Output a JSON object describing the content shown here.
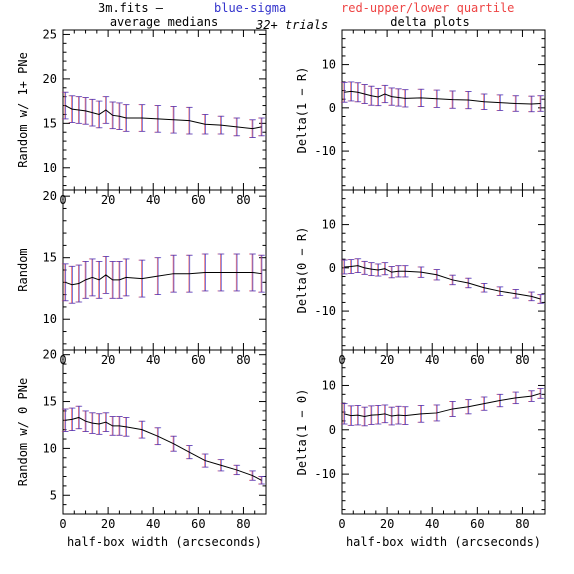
{
  "header": {
    "file_label": "3m.fits  —",
    "blue_label": "blue-sigma",
    "red_label": "red-upper/lower quartile",
    "trials_label": "32+ trials",
    "left_column_title": "average medians",
    "right_column_title": "delta plots"
  },
  "colors": {
    "line": "#000000",
    "sigma_bars": "#3333cc",
    "quartile_bars": "#ee4444",
    "frame": "#000000"
  },
  "chart_data": [
    {
      "type": "line",
      "panel": "left-top",
      "title": "",
      "xlabel": "",
      "ylabel": "Random w/ 1+ PNe",
      "xlim": [
        0,
        90
      ],
      "ylim": [
        7.5,
        25.5
      ],
      "xticks": [
        0,
        20,
        40,
        60,
        80
      ],
      "yticks": [
        10,
        15,
        20,
        25
      ],
      "show_xtick_labels": true,
      "x": [
        1,
        4,
        7,
        10,
        13,
        16,
        19,
        22,
        25,
        28,
        35,
        42,
        49,
        56,
        63,
        70,
        77,
        84,
        88
      ],
      "y": [
        17.0,
        16.6,
        16.5,
        16.4,
        16.2,
        16.0,
        16.5,
        15.9,
        15.8,
        15.6,
        15.6,
        15.5,
        15.4,
        15.3,
        14.9,
        14.8,
        14.6,
        14.4,
        14.6
      ],
      "yerr": [
        1.5,
        1.5,
        1.5,
        1.5,
        1.5,
        1.5,
        1.5,
        1.5,
        1.5,
        1.5,
        1.5,
        1.5,
        1.5,
        1.5,
        1.1,
        1.0,
        1.0,
        1.0,
        1.0
      ]
    },
    {
      "type": "line",
      "panel": "right-top",
      "title": "",
      "xlabel": "",
      "ylabel": "Delta(1 − R)",
      "xlim": [
        0,
        90
      ],
      "ylim": [
        -19,
        18
      ],
      "xticks": [
        0,
        20,
        40,
        60,
        80
      ],
      "yticks": [
        -10,
        0,
        10
      ],
      "show_xtick_labels": false,
      "x": [
        1,
        4,
        7,
        10,
        13,
        16,
        19,
        22,
        25,
        28,
        35,
        42,
        49,
        56,
        63,
        70,
        77,
        84,
        88
      ],
      "y": [
        3.6,
        3.8,
        3.6,
        3.2,
        2.8,
        2.5,
        3.2,
        2.6,
        2.4,
        2.2,
        2.3,
        2.1,
        1.9,
        1.8,
        1.4,
        1.2,
        1.0,
        0.9,
        1.0
      ],
      "yerr": [
        2.3,
        2.2,
        2.2,
        2.2,
        2.2,
        2.0,
        2.0,
        2.0,
        2.0,
        2.0,
        2.0,
        2.0,
        2.0,
        2.0,
        1.8,
        1.8,
        1.8,
        1.8,
        1.8
      ]
    },
    {
      "type": "line",
      "panel": "left-middle",
      "title": "",
      "xlabel": "",
      "ylabel": "Random",
      "xlim": [
        0,
        90
      ],
      "ylim": [
        7.5,
        20.5
      ],
      "xticks": [
        0,
        20,
        40,
        60,
        80
      ],
      "yticks": [
        10,
        15,
        20
      ],
      "show_xtick_labels": true,
      "x": [
        1,
        4,
        7,
        10,
        13,
        16,
        19,
        22,
        25,
        28,
        35,
        42,
        49,
        56,
        63,
        70,
        77,
        84,
        88
      ],
      "y": [
        13.0,
        12.8,
        12.9,
        13.2,
        13.4,
        13.2,
        13.6,
        13.2,
        13.2,
        13.4,
        13.3,
        13.5,
        13.7,
        13.7,
        13.8,
        13.8,
        13.8,
        13.8,
        13.7
      ],
      "yerr": [
        1.5,
        1.5,
        1.5,
        1.5,
        1.5,
        1.5,
        1.5,
        1.5,
        1.5,
        1.5,
        1.5,
        1.5,
        1.5,
        1.5,
        1.5,
        1.5,
        1.5,
        1.5,
        1.5
      ]
    },
    {
      "type": "line",
      "panel": "right-middle",
      "title": "",
      "xlabel": "",
      "ylabel": "Delta(0 − R)",
      "xlim": [
        0,
        90
      ],
      "ylim": [
        -19,
        18
      ],
      "xticks": [
        0,
        20,
        40,
        60,
        80
      ],
      "yticks": [
        -10,
        0,
        10
      ],
      "show_xtick_labels": true,
      "x": [
        1,
        4,
        7,
        10,
        13,
        16,
        19,
        22,
        25,
        28,
        35,
        42,
        49,
        56,
        63,
        70,
        77,
        84,
        88
      ],
      "y": [
        0.2,
        0.3,
        0.5,
        0.0,
        -0.3,
        -0.5,
        -0.2,
        -1.0,
        -0.8,
        -0.8,
        -1.0,
        -1.6,
        -2.8,
        -3.5,
        -4.6,
        -5.4,
        -6.0,
        -6.6,
        -7.2
      ],
      "yerr": [
        1.6,
        1.6,
        1.6,
        1.5,
        1.5,
        1.4,
        1.4,
        1.3,
        1.3,
        1.3,
        1.2,
        1.2,
        1.1,
        1.1,
        1.0,
        1.0,
        1.0,
        1.0,
        1.0
      ]
    },
    {
      "type": "line",
      "panel": "left-bottom",
      "title": "",
      "xlabel": "half-box width (arcseconds)",
      "ylabel": "Random w/ 0 PNe",
      "xlim": [
        0,
        90
      ],
      "ylim": [
        3,
        20.5
      ],
      "xticks": [
        0,
        20,
        40,
        60,
        80
      ],
      "yticks": [
        5,
        10,
        15,
        20
      ],
      "show_xtick_labels": true,
      "x": [
        1,
        4,
        7,
        10,
        13,
        16,
        19,
        22,
        25,
        28,
        35,
        42,
        49,
        56,
        63,
        70,
        77,
        84,
        88
      ],
      "y": [
        13.0,
        13.1,
        13.3,
        12.9,
        12.7,
        12.6,
        12.8,
        12.4,
        12.4,
        12.3,
        12.0,
        11.3,
        10.5,
        9.6,
        8.7,
        8.2,
        7.7,
        7.1,
        6.6
      ],
      "yerr": [
        1.2,
        1.2,
        1.2,
        1.1,
        1.1,
        1.1,
        1.0,
        1.0,
        1.0,
        1.0,
        0.9,
        0.9,
        0.8,
        0.7,
        0.7,
        0.6,
        0.5,
        0.5,
        0.4
      ]
    },
    {
      "type": "line",
      "panel": "right-bottom",
      "title": "",
      "xlabel": "half-box width (arcseconds)",
      "ylabel": "Delta(1 − 0)",
      "xlim": [
        0,
        90
      ],
      "ylim": [
        -19,
        18
      ],
      "xticks": [
        0,
        20,
        40,
        60,
        80
      ],
      "yticks": [
        -10,
        0,
        10
      ],
      "show_xtick_labels": true,
      "x": [
        1,
        4,
        7,
        10,
        13,
        16,
        19,
        22,
        25,
        28,
        35,
        42,
        49,
        56,
        63,
        70,
        77,
        84,
        88
      ],
      "y": [
        3.6,
        3.2,
        3.3,
        3.0,
        3.3,
        3.4,
        3.6,
        3.1,
        3.3,
        3.2,
        3.6,
        3.8,
        4.7,
        5.2,
        5.9,
        6.6,
        7.2,
        7.6,
        8.2
      ],
      "yerr": [
        2.3,
        2.2,
        2.2,
        2.1,
        2.1,
        2.1,
        2.0,
        2.0,
        2.0,
        2.0,
        1.9,
        1.8,
        1.7,
        1.6,
        1.5,
        1.4,
        1.3,
        1.2,
        1.1
      ]
    }
  ]
}
